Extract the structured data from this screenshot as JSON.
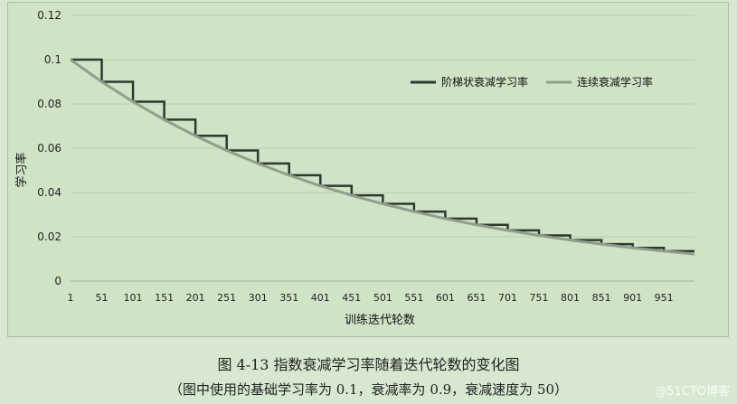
{
  "chart_data": {
    "type": "line",
    "title": "",
    "xlabel": "训练迭代轮数",
    "ylabel": "学习率",
    "ylim": [
      0,
      0.12
    ],
    "yticks": [
      "0",
      "0.02",
      "0.04",
      "0.06",
      "0.08",
      "0.1",
      "0.12"
    ],
    "xlim": [
      1,
      1000
    ],
    "xticks": [
      "1",
      "51",
      "101",
      "151",
      "201",
      "251",
      "301",
      "351",
      "401",
      "451",
      "501",
      "551",
      "601",
      "651",
      "701",
      "751",
      "801",
      "851",
      "901",
      "951"
    ],
    "legend_position": "top-right",
    "grid": "horizontal",
    "series": [
      {
        "name": "阶梯状衰减学习率",
        "style": "staircase",
        "color": "#2b3a2f",
        "x": [
          1,
          51,
          101,
          151,
          201,
          251,
          301,
          351,
          401,
          451,
          501,
          551,
          601,
          651,
          701,
          751,
          801,
          851,
          901,
          951,
          1000
        ],
        "y": [
          0.1,
          0.09,
          0.081,
          0.0729,
          0.0656,
          0.059,
          0.0531,
          0.0478,
          0.043,
          0.0387,
          0.0349,
          0.0314,
          0.0282,
          0.0254,
          0.0229,
          0.0206,
          0.0185,
          0.0167,
          0.015,
          0.0135,
          0.0122
        ]
      },
      {
        "name": "连续衰减学习率",
        "style": "smooth",
        "color": "#8f9f8c",
        "x": [
          1,
          51,
          101,
          151,
          201,
          251,
          301,
          351,
          401,
          451,
          501,
          551,
          601,
          651,
          701,
          751,
          801,
          851,
          901,
          951,
          1000
        ],
        "y": [
          0.1,
          0.09,
          0.081,
          0.0729,
          0.0656,
          0.059,
          0.0531,
          0.0478,
          0.043,
          0.0387,
          0.0349,
          0.0314,
          0.0282,
          0.0254,
          0.0229,
          0.0206,
          0.0185,
          0.0167,
          0.015,
          0.0135,
          0.0122
        ]
      }
    ]
  },
  "caption": {
    "main": "图 4-13    指数衰减学习率随着迭代轮数的变化图",
    "sub": "（图中使用的基础学习率为 0.1，衰减率为 0.9，衰减速度为 50）"
  },
  "watermark": "@51CTO博客"
}
